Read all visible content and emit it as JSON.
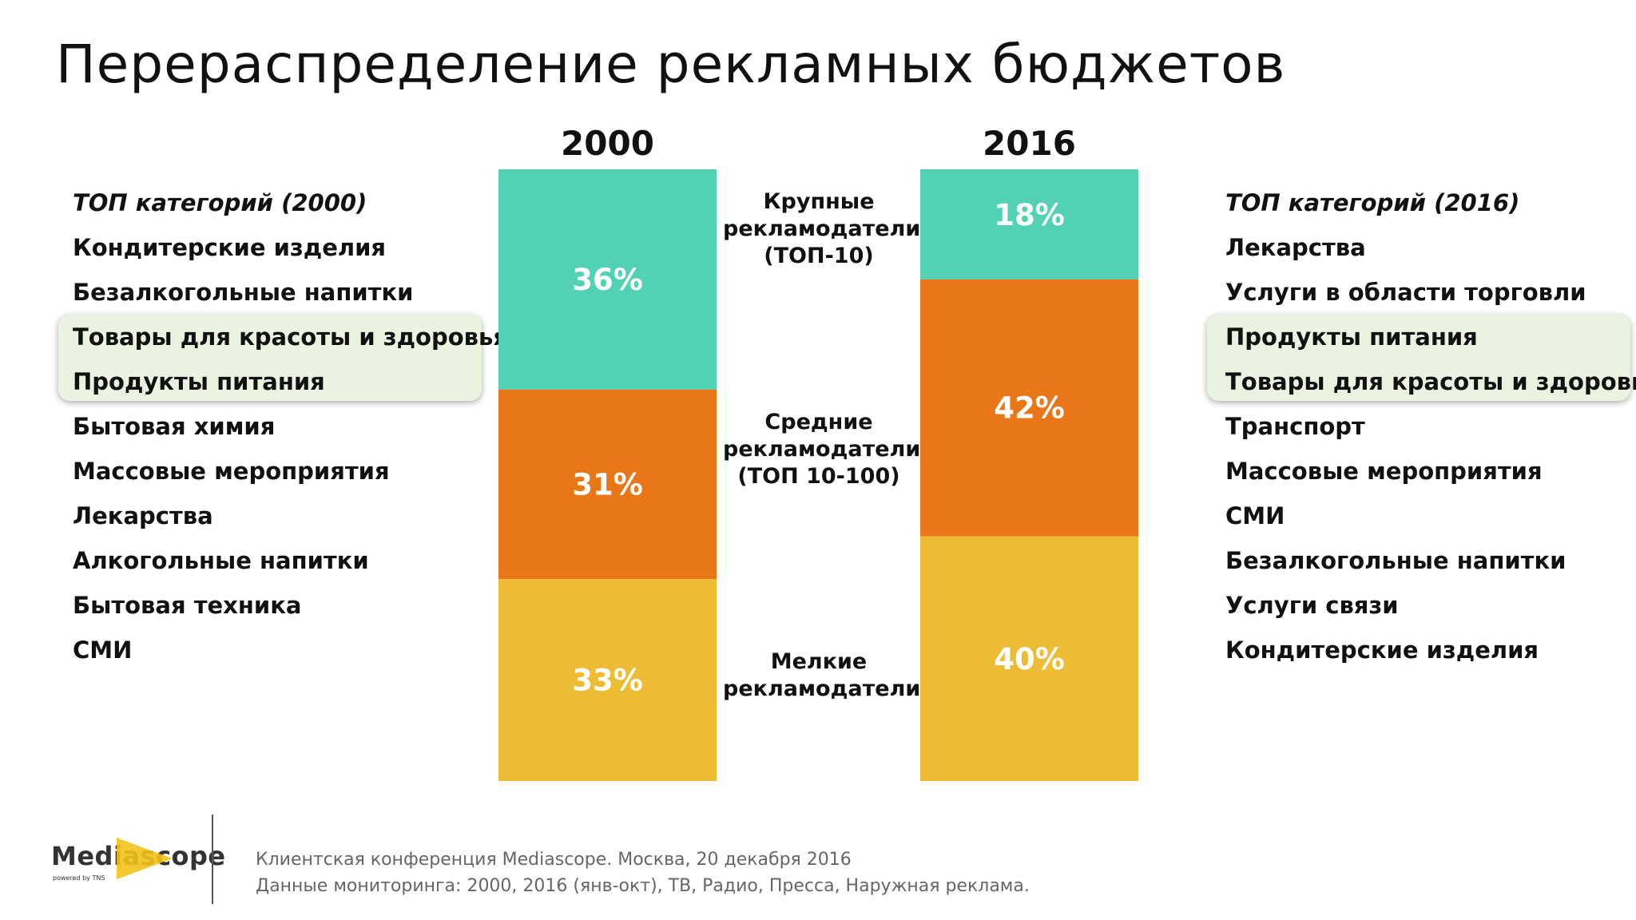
{
  "title": "Перераспределение рекламных бюджетов",
  "left_list": {
    "heading": "ТОП категорий (2000)",
    "items": [
      "Кондитерские изделия",
      "Безалкогольные напитки",
      "Товары для красоты и здоровья",
      "Продукты питания",
      "Бытовая химия",
      "Массовые мероприятия",
      "Лекарства",
      "Алкогольные напитки",
      "Бытовая техника",
      "СМИ"
    ]
  },
  "right_list": {
    "heading": "ТОП категорий (2016)",
    "items": [
      "Лекарства",
      "Услуги в области торговли",
      "Продукты питания",
      "Товары для красоты и здоровья",
      "Транспорт",
      "Массовые мероприятия",
      "СМИ",
      "Безалкогольные напитки",
      "Услуги связи",
      "Кондитерские изделия"
    ]
  },
  "segment_labels": {
    "large": "Крупные рекламодатели (ТОП-10)",
    "medium": "Средние рекламодатели (ТОП 10-100)",
    "small": "Мелкие рекламодатели"
  },
  "chart_data": {
    "type": "bar",
    "stacked": true,
    "normalized": true,
    "categories": [
      "2000",
      "2016"
    ],
    "series": [
      {
        "name": "Крупные рекламодатели (ТОП-10)",
        "values": [
          36,
          18
        ],
        "color": "#52d1b4"
      },
      {
        "name": "Средние рекламодатели (ТОП 10-100)",
        "values": [
          31,
          42
        ],
        "color": "#ea7717"
      },
      {
        "name": "Мелкие рекламодатели",
        "values": [
          33,
          40
        ],
        "color": "#ecbd34"
      }
    ],
    "value_labels": [
      [
        "36%",
        "31%",
        "33%"
      ],
      [
        "18%",
        "42%",
        "40%"
      ]
    ],
    "ylim": [
      0,
      100
    ]
  },
  "footer": {
    "logo": "Mediascope",
    "logo_sub": "powered by TNS",
    "line1": "Клиентская конференция Mediascope. Москва, 20 декабря 2016",
    "line2": "Данные мониторинга: 2000, 2016 (янв-окт), ТВ, Радио, Пресса, Наружная реклама."
  }
}
